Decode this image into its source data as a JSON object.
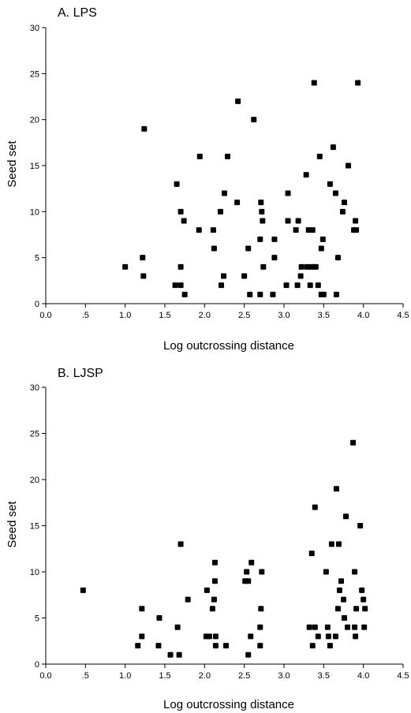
{
  "chart_data": [
    {
      "type": "scatter",
      "title": "A. LPS",
      "xlabel": "Log outcrossing distance",
      "ylabel": "Seed set",
      "xlim": [
        0,
        4.5
      ],
      "ylim": [
        0,
        30
      ],
      "xticks": [
        "0.0",
        ".5",
        "1.0",
        "1.5",
        "2.0",
        "2.5",
        "3.0",
        "3.5",
        "4.0",
        "4.5"
      ],
      "xtick_values": [
        0,
        0.5,
        1.0,
        1.5,
        2.0,
        2.5,
        3.0,
        3.5,
        4.0,
        4.5
      ],
      "yticks": [
        "0",
        "5",
        "10",
        "15",
        "20",
        "25",
        "30"
      ],
      "ytick_values": [
        0,
        5,
        10,
        15,
        20,
        25,
        30
      ],
      "marker_color": "#000000",
      "points": [
        [
          1.0,
          4
        ],
        [
          1.22,
          5
        ],
        [
          1.23,
          3
        ],
        [
          1.24,
          19
        ],
        [
          1.63,
          2
        ],
        [
          1.65,
          13
        ],
        [
          1.7,
          2
        ],
        [
          1.7,
          4
        ],
        [
          1.7,
          10
        ],
        [
          1.74,
          9
        ],
        [
          1.75,
          1
        ],
        [
          1.93,
          8
        ],
        [
          1.94,
          16
        ],
        [
          2.11,
          8
        ],
        [
          2.12,
          6
        ],
        [
          2.2,
          10
        ],
        [
          2.21,
          2
        ],
        [
          2.24,
          3
        ],
        [
          2.25,
          12
        ],
        [
          2.29,
          16
        ],
        [
          2.41,
          11
        ],
        [
          2.42,
          22
        ],
        [
          2.5,
          3
        ],
        [
          2.55,
          6
        ],
        [
          2.57,
          1
        ],
        [
          2.62,
          20
        ],
        [
          2.7,
          1
        ],
        [
          2.7,
          7
        ],
        [
          2.71,
          11
        ],
        [
          2.72,
          10
        ],
        [
          2.73,
          9
        ],
        [
          2.74,
          4
        ],
        [
          2.86,
          1
        ],
        [
          2.88,
          5
        ],
        [
          2.88,
          7
        ],
        [
          3.03,
          2
        ],
        [
          3.05,
          9
        ],
        [
          3.05,
          12
        ],
        [
          3.15,
          8
        ],
        [
          3.17,
          2
        ],
        [
          3.18,
          9
        ],
        [
          3.21,
          3
        ],
        [
          3.22,
          4
        ],
        [
          3.28,
          14
        ],
        [
          3.29,
          4
        ],
        [
          3.31,
          8
        ],
        [
          3.33,
          4
        ],
        [
          3.33,
          2
        ],
        [
          3.36,
          8
        ],
        [
          3.38,
          24
        ],
        [
          3.38,
          4
        ],
        [
          3.4,
          4
        ],
        [
          3.43,
          2
        ],
        [
          3.45,
          16
        ],
        [
          3.47,
          1
        ],
        [
          3.47,
          6
        ],
        [
          3.49,
          7
        ],
        [
          3.5,
          1
        ],
        [
          3.58,
          13
        ],
        [
          3.62,
          17
        ],
        [
          3.65,
          12
        ],
        [
          3.66,
          1
        ],
        [
          3.68,
          5
        ],
        [
          3.74,
          10
        ],
        [
          3.76,
          11
        ],
        [
          3.81,
          15
        ],
        [
          3.88,
          8
        ],
        [
          3.9,
          9
        ],
        [
          3.91,
          8
        ],
        [
          3.93,
          24
        ]
      ]
    },
    {
      "type": "scatter",
      "title": "B. LJSP",
      "xlabel": "Log outcrossing distance",
      "ylabel": "Seed set",
      "xlim": [
        0,
        4.5
      ],
      "ylim": [
        0,
        30
      ],
      "xticks": [
        "0.0",
        ".5",
        "1.0",
        "1.5",
        "2.0",
        "2.5",
        "3.0",
        "3.5",
        "4.0",
        "4.5"
      ],
      "xtick_values": [
        0,
        0.5,
        1.0,
        1.5,
        2.0,
        2.5,
        3.0,
        3.5,
        4.0,
        4.5
      ],
      "yticks": [
        "0",
        "5",
        "10",
        "15",
        "20",
        "25",
        "30"
      ],
      "ytick_values": [
        0,
        5,
        10,
        15,
        20,
        25,
        30
      ],
      "marker_color": "#000000",
      "points": [
        [
          0.47,
          8
        ],
        [
          1.16,
          2
        ],
        [
          1.21,
          3
        ],
        [
          1.21,
          6
        ],
        [
          1.42,
          2
        ],
        [
          1.43,
          5
        ],
        [
          1.57,
          1
        ],
        [
          1.66,
          4
        ],
        [
          1.68,
          1
        ],
        [
          1.7,
          13
        ],
        [
          1.79,
          7
        ],
        [
          2.02,
          3
        ],
        [
          2.03,
          8
        ],
        [
          2.06,
          3
        ],
        [
          2.1,
          6
        ],
        [
          2.12,
          7
        ],
        [
          2.13,
          11
        ],
        [
          2.13,
          9
        ],
        [
          2.14,
          2
        ],
        [
          2.14,
          3
        ],
        [
          2.27,
          2
        ],
        [
          2.51,
          9
        ],
        [
          2.53,
          10
        ],
        [
          2.55,
          1
        ],
        [
          2.55,
          9
        ],
        [
          2.58,
          3
        ],
        [
          2.59,
          11
        ],
        [
          2.7,
          2
        ],
        [
          2.7,
          4
        ],
        [
          2.71,
          6
        ],
        [
          2.72,
          10
        ],
        [
          3.32,
          4
        ],
        [
          3.35,
          12
        ],
        [
          3.36,
          2
        ],
        [
          3.39,
          17
        ],
        [
          3.39,
          4
        ],
        [
          3.43,
          3
        ],
        [
          3.53,
          10
        ],
        [
          3.55,
          4
        ],
        [
          3.56,
          3
        ],
        [
          3.58,
          2
        ],
        [
          3.6,
          13
        ],
        [
          3.65,
          3
        ],
        [
          3.66,
          19
        ],
        [
          3.68,
          6
        ],
        [
          3.69,
          13
        ],
        [
          3.7,
          8
        ],
        [
          3.72,
          9
        ],
        [
          3.75,
          7
        ],
        [
          3.76,
          5
        ],
        [
          3.78,
          16
        ],
        [
          3.8,
          4
        ],
        [
          3.87,
          24
        ],
        [
          3.89,
          10
        ],
        [
          3.89,
          4
        ],
        [
          3.9,
          3
        ],
        [
          3.91,
          6
        ],
        [
          3.96,
          15
        ],
        [
          3.98,
          8
        ],
        [
          4.0,
          7
        ],
        [
          4.01,
          4
        ],
        [
          4.02,
          6
        ]
      ]
    }
  ]
}
